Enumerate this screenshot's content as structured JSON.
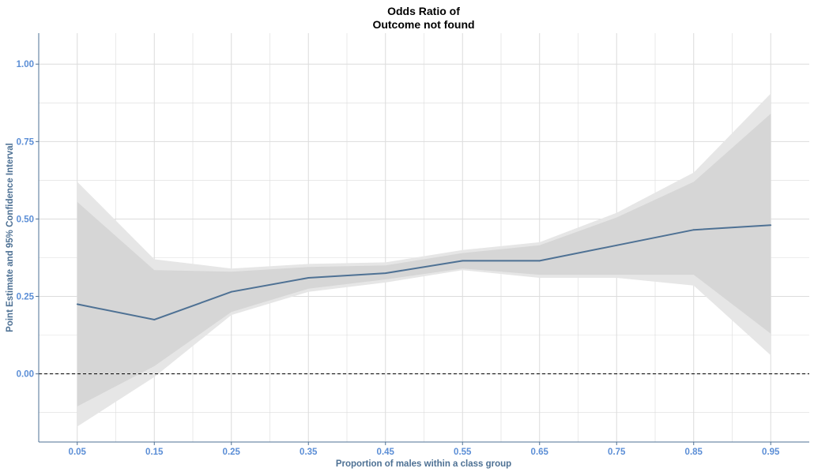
{
  "chart_data": {
    "type": "line",
    "title_lines": [
      "Odds Ratio of",
      "Outcome not found"
    ],
    "xlabel": "Proportion of males within a class group",
    "ylabel": "Point Estimate and 95% Confidence Interval",
    "x_ticks": [
      "0.05",
      "0.15",
      "0.25",
      "0.35",
      "0.45",
      "0.55",
      "0.65",
      "0.75",
      "0.85",
      "0.95"
    ],
    "y_ticks": [
      "0.00",
      "0.25",
      "0.50",
      "0.75",
      "1.00"
    ],
    "xlim": [
      0.0,
      1.0
    ],
    "ylim": [
      -0.22,
      1.1
    ],
    "grid": true,
    "reference_line": {
      "y": 0.0,
      "style": "dashed"
    },
    "series": [
      {
        "x": [
          0.05,
          0.15,
          0.25,
          0.35,
          0.45,
          0.55,
          0.65,
          0.75,
          0.85,
          0.95
        ],
        "estimate": [
          0.225,
          0.175,
          0.265,
          0.31,
          0.325,
          0.365,
          0.365,
          0.415,
          0.465,
          0.48
        ],
        "outer_upper": [
          0.62,
          0.37,
          0.34,
          0.355,
          0.36,
          0.4,
          0.425,
          0.52,
          0.65,
          0.905
        ],
        "outer_lower": [
          -0.17,
          -0.01,
          0.19,
          0.265,
          0.295,
          0.335,
          0.31,
          0.31,
          0.285,
          0.06
        ],
        "inner_upper": [
          0.555,
          0.335,
          0.33,
          0.345,
          0.35,
          0.39,
          0.415,
          0.505,
          0.62,
          0.84
        ],
        "inner_lower": [
          -0.105,
          0.025,
          0.2,
          0.275,
          0.305,
          0.34,
          0.32,
          0.32,
          0.32,
          0.13
        ]
      }
    ],
    "colors": {
      "line": "#4e7194",
      "outer_band": "#e6e6e6",
      "inner_band": "#d6d6d6",
      "grid": "#dcdcdc",
      "tick_label": "#5b8ed6",
      "axis_title": "#4e7194",
      "axis_line": "#4e7194",
      "reference_line": "#000000"
    }
  }
}
